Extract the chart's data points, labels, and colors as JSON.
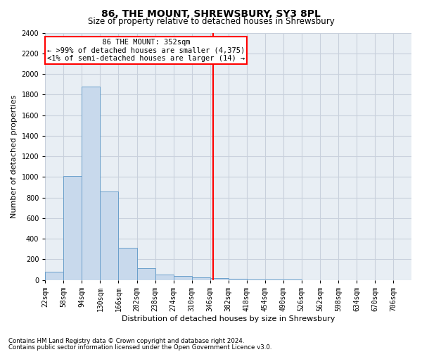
{
  "title": "86, THE MOUNT, SHREWSBURY, SY3 8PL",
  "subtitle": "Size of property relative to detached houses in Shrewsbury",
  "xlabel": "Distribution of detached houses by size in Shrewsbury",
  "ylabel": "Number of detached properties",
  "footnote1": "Contains HM Land Registry data © Crown copyright and database right 2024.",
  "footnote2": "Contains public sector information licensed under the Open Government Licence v3.0.",
  "annotation_title": "86 THE MOUNT: 352sqm",
  "annotation_line1": "← >99% of detached houses are smaller (4,375)",
  "annotation_line2": "<1% of semi-detached houses are larger (14) →",
  "marker_value": 352,
  "bin_edges": [
    22,
    58,
    94,
    130,
    166,
    202,
    238,
    274,
    310,
    346,
    382,
    418,
    454,
    490,
    526,
    562,
    598,
    634,
    670,
    706,
    742
  ],
  "bar_heights": [
    80,
    1010,
    1880,
    860,
    310,
    115,
    50,
    42,
    28,
    20,
    8,
    4,
    3,
    2,
    1,
    1,
    1,
    0,
    0,
    1
  ],
  "bar_color": "#c8d9ec",
  "bar_edge_color": "#6a9fcb",
  "marker_color": "red",
  "grid_color": "#c8d0dc",
  "bg_color": "#e8eef4",
  "ylim": [
    0,
    2400
  ],
  "yticks": [
    0,
    200,
    400,
    600,
    800,
    1000,
    1200,
    1400,
    1600,
    1800,
    2000,
    2200,
    2400
  ],
  "title_fontsize": 10,
  "subtitle_fontsize": 8.5,
  "axis_label_fontsize": 8,
  "tick_fontsize": 7,
  "annotation_fontsize": 7.5,
  "footnote_fontsize": 6.2
}
